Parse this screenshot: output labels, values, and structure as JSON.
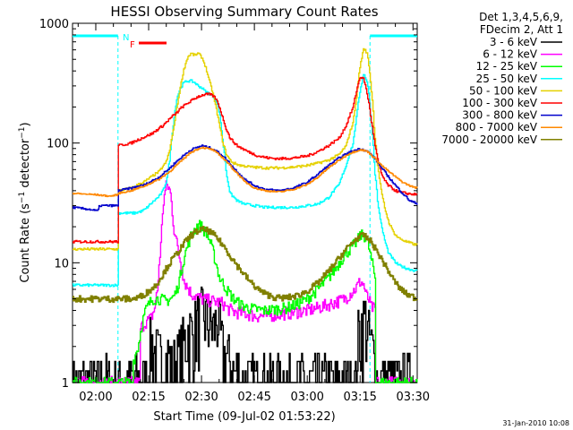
{
  "chart_data": {
    "type": "line",
    "title": "HESSI Observing Summary Count Rates",
    "xlabel": "Start Time (09-Jul-02 01:53:22)",
    "ylabel": "Count Rate (s⁻¹ detector⁻¹)",
    "ylabel_main": "Count Rate (s",
    "ylabel_exp1": "−1",
    "ylabel_mid": " detector",
    "ylabel_exp2": "−1",
    "ylabel_end": ")",
    "y_scale": "log",
    "ylim": [
      1,
      1000
    ],
    "xlim_minutes": [
      113.4,
      211.2
    ],
    "x_ticks": [
      {
        "value": 120,
        "label": "02:00"
      },
      {
        "value": 135,
        "label": "02:15"
      },
      {
        "value": 150,
        "label": "02:30"
      },
      {
        "value": 165,
        "label": "02:45"
      },
      {
        "value": 180,
        "label": "03:00"
      },
      {
        "value": 195,
        "label": "03:15"
      },
      {
        "value": 210,
        "label": "03:30"
      }
    ],
    "y_ticks": [
      {
        "value": 1,
        "label": "1"
      },
      {
        "value": 10,
        "label": "10"
      },
      {
        "value": 100,
        "label": "100"
      },
      {
        "value": 1000,
        "label": "1000"
      }
    ],
    "legend_position": "right",
    "legend_header": [
      "Det 1,3,4,5,6,9,",
      "FDecim 2, Att 1"
    ],
    "flag_labels": {
      "n": "N",
      "f": "F"
    },
    "timestamp": "31-Jan-2010 10:08",
    "night_intervals_minutes": [
      [
        113.4,
        126.3
      ],
      [
        197.8,
        211.2
      ]
    ],
    "series": [
      {
        "name": "3 - 6 keV",
        "color": "#000000",
        "x": [
          113.4,
          134.4,
          135.6,
          137.1,
          137.2,
          139.1,
          140.5,
          141.4,
          143.2,
          145,
          146.2,
          147.4,
          149,
          150.6,
          152,
          153.5,
          154.5,
          155.2,
          156,
          157.2,
          158.8,
          159,
          160.2,
          161,
          161.1,
          193.8,
          194,
          195.3,
          196.4,
          197.2,
          198.5,
          199.2,
          199.3,
          211.2
        ],
        "y": [
          1,
          1,
          2.2,
          1.5,
          1.8,
          1.2,
          1.8,
          1.3,
          1.5,
          2.2,
          2.8,
          2.5,
          3.4,
          3.8,
          3.2,
          2.8,
          3.5,
          2.5,
          1.8,
          1.6,
          1.2,
          1.2,
          1.3,
          1.1,
          1,
          1,
          2,
          3.2,
          3.4,
          2.5,
          1.8,
          1.5,
          1,
          1
        ]
      },
      {
        "name": "6 - 12 keV",
        "color": "#ff00ff",
        "x": [
          113.4,
          132.4,
          132.5,
          134,
          135.5,
          136.5,
          137.5,
          138.5,
          139,
          140,
          141,
          142,
          143,
          144,
          145,
          147,
          150,
          153,
          156,
          157,
          159,
          162,
          165,
          168,
          171,
          174,
          177,
          180,
          183,
          186,
          189,
          190.5,
          192,
          193.5,
          195,
          196,
          196.5,
          197.5,
          198,
          199.3,
          199.4,
          211.2
        ],
        "y": [
          1,
          1,
          2.8,
          3.2,
          3.4,
          4,
          6,
          15,
          30,
          45,
          40,
          20,
          14,
          10,
          7,
          5.5,
          5,
          4.8,
          4.6,
          4.2,
          3.9,
          3.8,
          3.6,
          3.6,
          3.7,
          3.8,
          3.9,
          4,
          4.2,
          4.5,
          4.8,
          5,
          5.5,
          6,
          7,
          6.5,
          5.5,
          4.8,
          4.3,
          4,
          1,
          1
        ]
      },
      {
        "name": "12 - 25 keV",
        "color": "#00ff00",
        "x": [
          113.4,
          130.5,
          130.6,
          132,
          133,
          134,
          136,
          138,
          140,
          141,
          142,
          143,
          144,
          145,
          146,
          147,
          148,
          149,
          150,
          151,
          152,
          153,
          154,
          155,
          157,
          159,
          161,
          163,
          165,
          168,
          171,
          174,
          177,
          180,
          183,
          186,
          188,
          190,
          192,
          194,
          195,
          196,
          197,
          198,
          199.3,
          199.4,
          211.2
        ],
        "y": [
          1,
          1,
          1.5,
          2,
          3,
          4,
          5,
          5,
          4.8,
          5,
          5.2,
          6,
          8,
          11,
          14,
          17,
          19,
          21,
          20,
          18,
          16,
          13,
          10,
          7.5,
          6,
          5,
          4.5,
          4.2,
          4.1,
          4,
          4.1,
          4.2,
          4.5,
          5,
          6,
          7.5,
          9,
          11,
          13,
          15,
          17,
          17,
          15,
          11,
          7,
          1,
          1
        ]
      },
      {
        "name": "25 - 50 keV",
        "color": "#00ffff",
        "x": [
          113.4,
          126.2,
          126.3,
          131,
          133,
          134,
          135,
          136,
          137,
          138,
          139,
          140,
          141,
          142,
          143,
          144,
          145,
          146,
          147,
          148,
          149,
          150,
          151,
          152,
          153,
          154,
          155,
          156,
          157,
          158,
          160,
          162,
          165,
          168,
          172,
          176,
          180,
          183,
          186,
          189,
          191,
          193,
          194,
          195,
          196,
          197,
          198,
          199,
          200,
          201,
          202,
          203,
          204,
          205,
          206,
          208,
          211.2
        ],
        "y": [
          6.5,
          6.5,
          26,
          26,
          27,
          28,
          30,
          32,
          34,
          36,
          40,
          48,
          75,
          150,
          240,
          290,
          320,
          330,
          330,
          320,
          300,
          290,
          270,
          260,
          250,
          230,
          180,
          100,
          55,
          38,
          33,
          31,
          30,
          29,
          29,
          29,
          30,
          31,
          35,
          45,
          65,
          100,
          170,
          280,
          380,
          320,
          160,
          60,
          30,
          20,
          15,
          12,
          11,
          10,
          9.5,
          9,
          8.5
        ]
      },
      {
        "name": "50 - 100 keV",
        "color": "#e5d100",
        "x": [
          113.4,
          126.2,
          126.3,
          130,
          134,
          138,
          140,
          141,
          142,
          143,
          144,
          145,
          146,
          147,
          148,
          149,
          150,
          151,
          152,
          153,
          154,
          155,
          156,
          157,
          158,
          159,
          161,
          164,
          168,
          172,
          176,
          180,
          183,
          186,
          189,
          191,
          193,
          194,
          195,
          196,
          197,
          198,
          199,
          200,
          201,
          202,
          203,
          204,
          205,
          206,
          208,
          211.2
        ],
        "y": [
          13,
          13,
          40,
          42,
          48,
          58,
          70,
          90,
          130,
          200,
          300,
          420,
          520,
          560,
          540,
          560,
          520,
          440,
          340,
          270,
          200,
          140,
          100,
          80,
          72,
          68,
          65,
          63,
          62,
          62,
          63,
          65,
          68,
          72,
          80,
          95,
          150,
          250,
          450,
          620,
          550,
          300,
          120,
          60,
          38,
          28,
          22,
          19,
          17,
          16,
          15,
          14
        ]
      },
      {
        "name": "100 - 300 keV",
        "color": "#ff0000",
        "x": [
          113.4,
          126.2,
          126.3,
          130,
          133,
          136,
          139,
          141,
          143,
          144,
          145,
          146,
          147,
          148,
          149,
          150,
          151,
          152,
          153,
          154,
          155,
          156,
          157,
          158,
          160,
          163,
          166,
          169,
          172,
          176,
          180,
          183,
          186,
          189,
          191,
          193,
          194,
          195,
          196,
          197,
          198,
          199,
          200,
          201,
          202,
          203,
          204,
          205,
          206,
          208,
          211.2
        ],
        "y": [
          15,
          15,
          95,
          100,
          110,
          120,
          140,
          160,
          180,
          195,
          205,
          215,
          225,
          235,
          245,
          250,
          255,
          255,
          250,
          235,
          200,
          160,
          130,
          110,
          95,
          85,
          78,
          75,
          74,
          75,
          78,
          85,
          95,
          110,
          140,
          200,
          280,
          360,
          340,
          250,
          160,
          100,
          70,
          55,
          48,
          44,
          42,
          40,
          39,
          38,
          37
        ]
      },
      {
        "name": "300 - 800 keV",
        "color": "#0000cc",
        "x": [
          113.4,
          118,
          120.5,
          121,
          124,
          126.2,
          126.3,
          130,
          134,
          138,
          141,
          144,
          147,
          150,
          153,
          156,
          159,
          162,
          165,
          168,
          172,
          176,
          180,
          183,
          186,
          189,
          192,
          195,
          197,
          199,
          201,
          203,
          205,
          207,
          209,
          211.2
        ],
        "y": [
          29,
          28,
          27,
          30,
          30,
          30,
          40,
          42,
          45,
          52,
          62,
          75,
          88,
          95,
          90,
          78,
          62,
          50,
          44,
          41,
          40,
          42,
          47,
          55,
          65,
          75,
          84,
          90,
          85,
          75,
          62,
          52,
          44,
          38,
          33,
          31
        ]
      },
      {
        "name": "800 - 7000 keV",
        "color": "#ff8800",
        "x": [
          113.4,
          120,
          124,
          126.2,
          126.3,
          130,
          134,
          138,
          141,
          144,
          147,
          150,
          153,
          156,
          159,
          162,
          165,
          168,
          172,
          176,
          180,
          183,
          186,
          189,
          192,
          195,
          197,
          199,
          201,
          203,
          205,
          207,
          209,
          211.2
        ],
        "y": [
          38,
          37,
          36,
          37,
          38,
          40,
          44,
          50,
          58,
          70,
          84,
          92,
          88,
          75,
          60,
          48,
          42,
          40,
          39,
          41,
          45,
          52,
          62,
          72,
          82,
          88,
          85,
          75,
          65,
          58,
          52,
          47,
          44,
          42
        ]
      },
      {
        "name": "7000 - 20000 keV",
        "color": "#808000",
        "x": [
          113.4,
          128,
          131,
          133,
          135,
          137,
          139,
          141,
          143,
          145,
          147,
          149,
          150,
          152,
          154,
          156,
          158,
          160,
          162,
          164,
          166,
          168,
          171,
          174,
          177,
          180,
          183,
          186,
          188,
          190,
          192,
          194,
          196,
          198,
          200,
          202,
          204,
          206,
          208,
          211.2
        ],
        "y": [
          5,
          5,
          5,
          5.3,
          5.8,
          6.5,
          8,
          10,
          12,
          14.5,
          17,
          18.5,
          19,
          18.5,
          16.5,
          14,
          11.5,
          9.5,
          8,
          6.8,
          6,
          5.5,
          5.1,
          5.1,
          5.3,
          5.8,
          6.8,
          8.5,
          10,
          12,
          14,
          16,
          17,
          15,
          12,
          9.5,
          7.5,
          6.2,
          5.5,
          5
        ]
      }
    ]
  }
}
